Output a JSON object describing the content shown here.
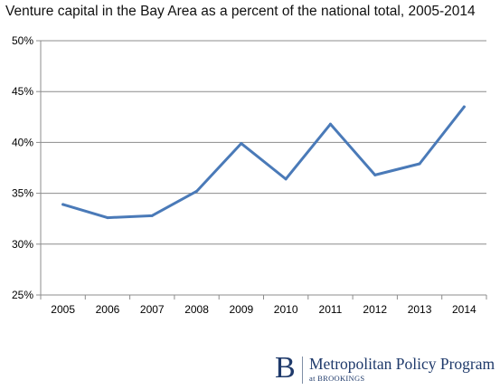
{
  "chart_data": {
    "type": "line",
    "title": "Venture capital in the Bay Area as a percent of the national total, 2005-2014",
    "xlabel": "",
    "ylabel": "",
    "categories": [
      "2005",
      "2006",
      "2007",
      "2008",
      "2009",
      "2010",
      "2011",
      "2012",
      "2013",
      "2014"
    ],
    "series": [
      {
        "values": [
          33.9,
          32.6,
          32.8,
          35.2,
          39.9,
          36.4,
          41.8,
          36.8,
          37.9,
          43.5
        ]
      }
    ],
    "ylim": [
      25,
      50
    ],
    "yticks": [
      25,
      30,
      35,
      40,
      45,
      50
    ],
    "ytick_labels": [
      "25%",
      "30%",
      "35%",
      "40%",
      "45%",
      "50%"
    ],
    "grid": true,
    "line_color": "#4a7ab8"
  },
  "logo": {
    "mark": "B",
    "name": "Metropolitan Policy Program",
    "sub": "at BROOKINGS"
  }
}
